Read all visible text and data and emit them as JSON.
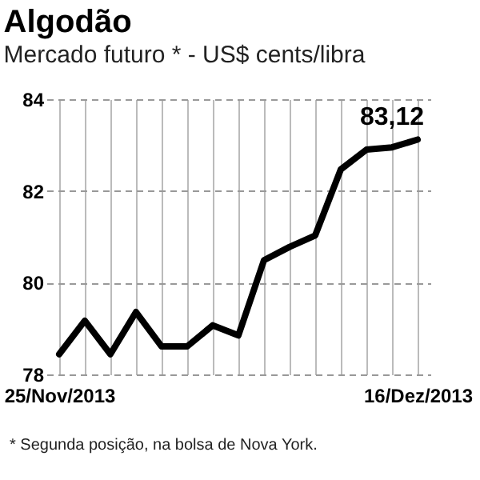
{
  "chart_data": {
    "type": "line",
    "title": "Algodão",
    "subtitle": "Mercado futuro * - US$ cents/libra",
    "categories": [
      "25/Nov/2013",
      null,
      null,
      null,
      null,
      null,
      null,
      null,
      null,
      null,
      null,
      null,
      null,
      null,
      "16/Dez/2013"
    ],
    "series": [
      {
        "color": "#000000",
        "values": [
          78.44,
          79.17,
          78.44,
          79.36,
          78.61,
          78.61,
          79.07,
          78.85,
          80.49,
          80.78,
          81.03,
          82.47,
          82.9,
          82.95,
          83.12
        ]
      }
    ],
    "ylim": [
      78,
      84
    ],
    "yticks": [
      78,
      80,
      82,
      84
    ],
    "grid": true,
    "marker": "none",
    "line_style": "solid",
    "annotations": [
      {
        "text": "83,12",
        "x": "16/Dez/2013",
        "y": 83.12
      },
      "* Segunda posição, na bolsa de Nova York."
    ]
  }
}
